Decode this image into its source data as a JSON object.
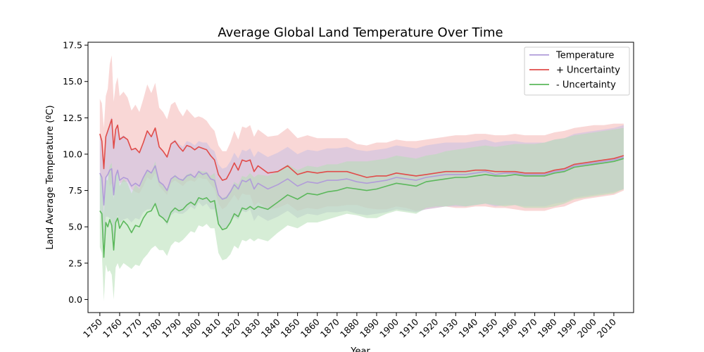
{
  "chart_data": {
    "type": "line",
    "title": "Average Global Land Temperature Over Time",
    "xlabel": "Year",
    "ylabel": "Land Average Temperature (ºC)",
    "xlim": [
      1744,
      2020
    ],
    "ylim": [
      -0.9,
      17.7
    ],
    "x_ticks": [
      1750,
      1760,
      1770,
      1780,
      1790,
      1800,
      1810,
      1820,
      1830,
      1840,
      1850,
      1860,
      1870,
      1880,
      1890,
      1900,
      1910,
      1920,
      1930,
      1940,
      1950,
      1960,
      1970,
      1980,
      1990,
      2000,
      2010
    ],
    "x_tick_labels": [
      "1750",
      "1760",
      "1770",
      "1780",
      "1790",
      "1800",
      "1810",
      "1820",
      "1830",
      "1840",
      "1850",
      "1860",
      "1870",
      "1880",
      "1890",
      "1900",
      "1910",
      "1920",
      "1930",
      "1940",
      "1950",
      "1960",
      "1970",
      "1980",
      "1990",
      "2000",
      "2010"
    ],
    "y_ticks": [
      0,
      2.5,
      5,
      7.5,
      10,
      12.5,
      15,
      17.5
    ],
    "y_tick_labels": [
      "0.0",
      "2.5",
      "5.0",
      "7.5",
      "10.0",
      "12.5",
      "15.0",
      "17.5"
    ],
    "grid": false,
    "legend_position": "top-right",
    "x": [
      1750,
      1751,
      1752,
      1753,
      1754,
      1755,
      1756,
      1757,
      1758,
      1759,
      1760,
      1762,
      1764,
      1766,
      1768,
      1770,
      1772,
      1774,
      1776,
      1778,
      1780,
      1782,
      1784,
      1786,
      1788,
      1790,
      1792,
      1794,
      1796,
      1798,
      1800,
      1802,
      1804,
      1806,
      1808,
      1810,
      1812,
      1814,
      1816,
      1818,
      1820,
      1822,
      1824,
      1826,
      1828,
      1830,
      1835,
      1840,
      1845,
      1850,
      1855,
      1860,
      1865,
      1870,
      1875,
      1880,
      1885,
      1890,
      1895,
      1900,
      1905,
      1910,
      1915,
      1920,
      1925,
      1930,
      1935,
      1940,
      1945,
      1950,
      1955,
      1960,
      1965,
      1970,
      1975,
      1980,
      1985,
      1990,
      1995,
      2000,
      2005,
      2010,
      2015
    ],
    "series": [
      {
        "name": "Temperature",
        "color": "#b19cd9",
        "values": [
          8.7,
          8.4,
          6.5,
          8.4,
          8.6,
          8.9,
          9.0,
          7.2,
          8.5,
          8.9,
          8.2,
          8.4,
          8.3,
          7.8,
          8.0,
          7.8,
          8.4,
          8.9,
          8.7,
          9.2,
          8.1,
          7.9,
          7.5,
          8.3,
          8.5,
          8.3,
          8.2,
          8.5,
          8.6,
          8.4,
          8.8,
          8.6,
          8.7,
          8.3,
          8.2,
          7.2,
          6.9,
          7.0,
          7.4,
          7.9,
          7.6,
          8.2,
          8.1,
          8.3,
          7.6,
          8.0,
          7.6,
          7.9,
          8.3,
          7.8,
          8.1,
          8.0,
          8.2,
          8.2,
          8.3,
          8.1,
          8.0,
          8.1,
          8.2,
          8.4,
          8.3,
          8.2,
          8.4,
          8.5,
          8.6,
          8.6,
          8.6,
          8.7,
          8.8,
          8.6,
          8.7,
          8.7,
          8.6,
          8.6,
          8.6,
          8.8,
          8.9,
          9.2,
          9.3,
          9.4,
          9.5,
          9.6,
          9.8
        ]
      },
      {
        "name": "+ Uncertainty",
        "color": "#e04c4a",
        "values": [
          11.4,
          10.9,
          9.0,
          11.2,
          11.6,
          12.0,
          12.4,
          10.4,
          11.7,
          12.0,
          11.0,
          11.2,
          11.0,
          10.3,
          10.4,
          10.1,
          10.8,
          11.6,
          11.2,
          11.8,
          10.5,
          10.2,
          9.8,
          10.7,
          10.9,
          10.5,
          10.2,
          10.6,
          10.5,
          10.3,
          10.5,
          10.4,
          10.3,
          9.9,
          9.6,
          8.6,
          8.2,
          8.3,
          8.8,
          9.4,
          8.9,
          9.6,
          9.5,
          9.6,
          8.8,
          9.2,
          8.7,
          8.8,
          9.2,
          8.6,
          8.8,
          8.7,
          8.8,
          8.8,
          8.8,
          8.6,
          8.4,
          8.5,
          8.5,
          8.7,
          8.6,
          8.5,
          8.6,
          8.7,
          8.8,
          8.8,
          8.8,
          8.9,
          8.9,
          8.8,
          8.8,
          8.8,
          8.7,
          8.7,
          8.7,
          8.9,
          9.0,
          9.3,
          9.4,
          9.5,
          9.6,
          9.7,
          9.9
        ]
      },
      {
        "name": "- Uncertainty",
        "color": "#5cb85c",
        "values": [
          6.1,
          5.9,
          2.9,
          5.3,
          5.0,
          5.5,
          5.1,
          3.4,
          5.3,
          5.6,
          4.9,
          5.4,
          5.1,
          4.6,
          5.1,
          5.0,
          5.6,
          6.0,
          6.1,
          6.6,
          5.8,
          5.6,
          5.3,
          6.0,
          6.3,
          6.1,
          6.2,
          6.5,
          6.7,
          6.5,
          7.0,
          6.9,
          7.0,
          6.7,
          6.8,
          5.2,
          4.8,
          4.9,
          5.3,
          5.9,
          5.7,
          6.3,
          6.2,
          6.4,
          6.2,
          6.4,
          6.2,
          6.7,
          7.2,
          6.9,
          7.3,
          7.2,
          7.4,
          7.5,
          7.7,
          7.6,
          7.5,
          7.6,
          7.8,
          8.0,
          7.9,
          7.8,
          8.1,
          8.2,
          8.3,
          8.4,
          8.4,
          8.5,
          8.6,
          8.5,
          8.5,
          8.6,
          8.5,
          8.5,
          8.5,
          8.7,
          8.8,
          9.1,
          9.2,
          9.3,
          9.4,
          9.5,
          9.7
        ]
      }
    ],
    "bands": [
      {
        "series": "+ Uncertainty",
        "fill": "#f4b6b5",
        "upper": [
          13.8,
          13.5,
          11.8,
          14.0,
          14.5,
          16.2,
          16.8,
          13.6,
          14.8,
          15.3,
          14.0,
          14.3,
          13.9,
          13.0,
          13.4,
          12.9,
          13.8,
          14.8,
          14.2,
          14.9,
          13.2,
          12.9,
          12.4,
          13.4,
          13.6,
          13.0,
          12.6,
          13.1,
          12.8,
          12.5,
          12.6,
          12.5,
          12.3,
          11.9,
          11.6,
          10.6,
          10.2,
          10.2,
          10.8,
          11.6,
          11.0,
          11.9,
          11.8,
          12.0,
          11.2,
          11.7,
          11.2,
          11.3,
          11.8,
          11.1,
          11.3,
          11.1,
          11.1,
          11.1,
          11.1,
          10.7,
          10.6,
          10.8,
          10.8,
          11.0,
          10.9,
          10.9,
          11.0,
          11.1,
          11.2,
          11.3,
          11.3,
          11.4,
          11.4,
          11.3,
          11.3,
          11.4,
          11.3,
          11.3,
          11.3,
          11.5,
          11.6,
          11.8,
          11.9,
          12.0,
          12.0,
          12.1,
          12.1
        ],
        "lower": [
          8.9,
          8.3,
          6.2,
          8.4,
          8.7,
          7.8,
          8.0,
          7.2,
          8.6,
          8.7,
          8.0,
          8.1,
          8.1,
          7.6,
          7.4,
          7.3,
          7.8,
          8.4,
          8.2,
          8.7,
          7.8,
          7.5,
          7.2,
          8.0,
          8.2,
          8.0,
          7.8,
          8.1,
          8.2,
          8.1,
          8.4,
          8.3,
          8.3,
          7.9,
          7.6,
          6.6,
          6.2,
          6.4,
          6.8,
          7.2,
          6.8,
          7.3,
          7.2,
          7.2,
          6.4,
          6.7,
          6.2,
          6.3,
          6.6,
          6.1,
          6.3,
          6.2,
          6.4,
          6.4,
          6.5,
          6.5,
          6.3,
          6.2,
          6.2,
          6.4,
          6.3,
          6.1,
          6.2,
          6.3,
          6.4,
          6.3,
          6.3,
          6.4,
          6.4,
          6.3,
          6.3,
          6.2,
          6.1,
          6.1,
          6.1,
          6.3,
          6.4,
          6.7,
          6.9,
          7.0,
          7.1,
          7.2,
          7.5
        ]
      },
      {
        "series": "Temperature",
        "fill": "#c9bfe3",
        "upper": [
          11.3,
          10.9,
          9.2,
          11.1,
          11.5,
          12.2,
          12.6,
          10.4,
          11.7,
          12.0,
          11.1,
          11.3,
          11.0,
          10.3,
          10.4,
          10.1,
          10.8,
          11.6,
          11.2,
          11.8,
          10.5,
          10.2,
          9.9,
          10.8,
          11.0,
          10.7,
          10.5,
          10.9,
          10.8,
          10.6,
          10.9,
          10.8,
          10.8,
          10.4,
          10.2,
          9.3,
          9.0,
          9.1,
          9.5,
          10.1,
          9.7,
          10.3,
          10.2,
          10.4,
          9.8,
          10.2,
          9.8,
          10.1,
          10.5,
          10.0,
          10.3,
          10.2,
          10.4,
          10.4,
          10.5,
          10.3,
          10.2,
          10.3,
          10.4,
          10.6,
          10.5,
          10.4,
          10.6,
          10.7,
          10.8,
          10.8,
          10.8,
          10.9,
          11.0,
          10.8,
          10.9,
          10.9,
          10.8,
          10.8,
          10.8,
          11.0,
          11.1,
          11.4,
          11.5,
          11.6,
          11.7,
          11.8,
          12.0
        ],
        "lower": [
          6.1,
          5.9,
          3.8,
          5.7,
          5.7,
          5.6,
          5.4,
          4.0,
          5.3,
          5.8,
          5.3,
          5.5,
          5.6,
          5.3,
          5.6,
          5.5,
          6.0,
          6.2,
          6.2,
          6.6,
          5.7,
          5.6,
          5.1,
          5.8,
          6.0,
          5.9,
          5.9,
          6.1,
          6.4,
          6.2,
          6.7,
          6.4,
          6.6,
          6.2,
          6.2,
          5.1,
          4.8,
          4.9,
          5.3,
          5.7,
          5.5,
          6.1,
          6.0,
          6.2,
          5.4,
          5.8,
          5.4,
          5.7,
          6.1,
          5.6,
          5.9,
          5.8,
          6.0,
          6.0,
          6.1,
          5.9,
          5.8,
          5.9,
          6.0,
          6.2,
          6.1,
          6.0,
          6.2,
          6.3,
          6.4,
          6.4,
          6.4,
          6.5,
          6.6,
          6.4,
          6.5,
          6.5,
          6.4,
          6.4,
          6.4,
          6.6,
          6.7,
          7.0,
          7.1,
          7.2,
          7.3,
          7.4,
          7.6
        ]
      },
      {
        "series": "- Uncertainty",
        "fill": "#b5dfb5",
        "upper": [
          8.6,
          8.5,
          5.8,
          8.2,
          8.2,
          9.2,
          9.4,
          6.9,
          8.4,
          8.8,
          7.8,
          8.3,
          8.0,
          7.3,
          7.9,
          7.6,
          8.4,
          8.9,
          8.7,
          9.5,
          8.2,
          7.9,
          7.6,
          8.3,
          8.6,
          8.3,
          8.3,
          8.6,
          8.7,
          8.4,
          8.9,
          8.8,
          8.8,
          8.5,
          8.7,
          7.2,
          7.0,
          7.1,
          7.5,
          8.1,
          7.9,
          8.5,
          8.4,
          8.7,
          8.4,
          8.6,
          8.5,
          8.8,
          9.3,
          8.9,
          9.2,
          9.1,
          9.3,
          9.3,
          9.5,
          9.5,
          9.5,
          9.6,
          9.7,
          9.9,
          9.8,
          9.7,
          9.9,
          10.0,
          10.2,
          10.3,
          10.4,
          10.5,
          10.6,
          10.5,
          10.6,
          10.7,
          10.7,
          10.7,
          10.8,
          11.0,
          11.1,
          11.3,
          11.4,
          11.5,
          11.6,
          11.7,
          11.8
        ],
        "lower": [
          3.6,
          3.2,
          -0.1,
          2.4,
          1.9,
          2.0,
          1.7,
          0.0,
          2.2,
          2.5,
          2.1,
          2.5,
          2.3,
          2.1,
          2.4,
          2.3,
          2.8,
          3.1,
          3.5,
          3.7,
          3.4,
          3.4,
          3.0,
          3.7,
          4.0,
          3.9,
          4.1,
          4.4,
          4.7,
          4.6,
          5.1,
          5.0,
          5.2,
          4.9,
          4.9,
          3.2,
          2.7,
          2.8,
          3.1,
          3.7,
          3.5,
          4.1,
          4.0,
          4.2,
          4.0,
          4.2,
          4.0,
          4.6,
          5.1,
          4.9,
          5.3,
          5.3,
          5.5,
          5.7,
          5.9,
          5.8,
          5.6,
          5.6,
          5.9,
          6.1,
          6.0,
          5.9,
          6.3,
          6.4,
          6.4,
          6.5,
          6.4,
          6.5,
          6.6,
          6.5,
          6.4,
          6.5,
          6.3,
          6.3,
          6.3,
          6.4,
          6.6,
          6.9,
          7.0,
          7.1,
          7.2,
          7.3,
          7.6
        ]
      }
    ]
  }
}
